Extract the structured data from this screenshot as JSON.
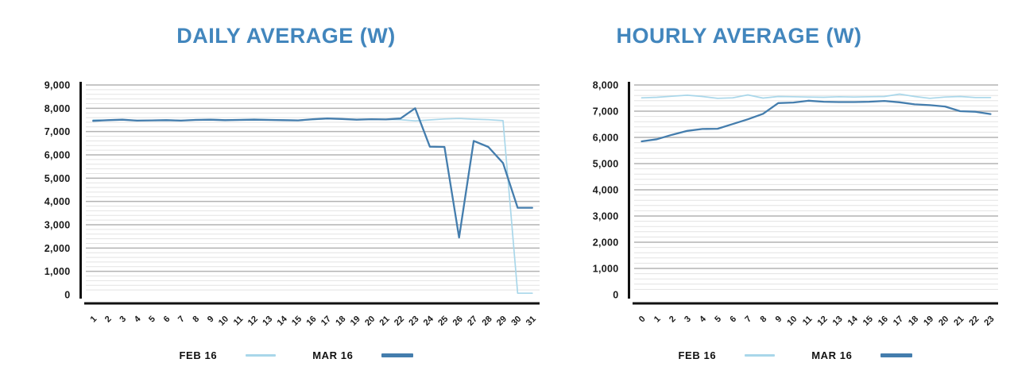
{
  "page": {
    "background_color": "#ffffff",
    "title_color": "#4286bd",
    "axis_color": "#111111",
    "grid_minor_color": "#e3e3e3",
    "grid_major_color": "#b3b3b3",
    "tick_label_color": "#1a1a1a"
  },
  "chart_data": [
    {
      "type": "line",
      "title": "DAILY AVERAGE (W)",
      "xlabel": "",
      "ylabel": "",
      "ylim": [
        0,
        9000
      ],
      "ytick_step": 1000,
      "minor_gridline_step": 200,
      "grid": "horizontal",
      "legend_position": "bottom",
      "ytick_labels": [
        "0",
        "1,000",
        "2,000",
        "3,000",
        "4,000",
        "5,000",
        "6,000",
        "7,000",
        "8,000",
        "9,000"
      ],
      "categories": [
        "1",
        "2",
        "3",
        "4",
        "5",
        "6",
        "7",
        "8",
        "9",
        "10",
        "11",
        "12",
        "13",
        "14",
        "15",
        "16",
        "17",
        "18",
        "19",
        "20",
        "21",
        "22",
        "23",
        "24",
        "25",
        "26",
        "27",
        "28",
        "29",
        "30",
        "31"
      ],
      "series": [
        {
          "name": "FEB 16",
          "color": "#a9d7ea",
          "stroke_width": 1.7,
          "values": [
            7500,
            7490,
            7510,
            7480,
            7490,
            7500,
            7480,
            7510,
            7520,
            7500,
            7510,
            7530,
            7510,
            7500,
            7490,
            7510,
            7550,
            7540,
            7520,
            7530,
            7520,
            7510,
            7460,
            7500,
            7540,
            7560,
            7530,
            7510,
            7470,
            60,
            60
          ]
        },
        {
          "name": "MAR 16",
          "color": "#447dad",
          "stroke_width": 2.3,
          "values": [
            7460,
            7490,
            7510,
            7470,
            7480,
            7490,
            7470,
            7500,
            7510,
            7490,
            7500,
            7510,
            7500,
            7490,
            7480,
            7530,
            7560,
            7540,
            7510,
            7530,
            7520,
            7560,
            8000,
            6350,
            6340,
            2450,
            6600,
            6340,
            5650,
            3730,
            3730
          ]
        }
      ]
    },
    {
      "type": "line",
      "title": "HOURLY AVERAGE (W)",
      "xlabel": "",
      "ylabel": "",
      "ylim": [
        0,
        8000
      ],
      "ytick_step": 1000,
      "minor_gridline_step": 200,
      "grid": "horizontal",
      "legend_position": "bottom",
      "ytick_labels": [
        "0",
        "1,000",
        "2,000",
        "3,000",
        "4,000",
        "5,000",
        "6,000",
        "7,000",
        "8,000"
      ],
      "categories": [
        "0",
        "1",
        "2",
        "3",
        "4",
        "5",
        "6",
        "7",
        "8",
        "9",
        "10",
        "11",
        "12",
        "13",
        "14",
        "15",
        "16",
        "17",
        "18",
        "19",
        "20",
        "21",
        "22",
        "23"
      ],
      "series": [
        {
          "name": "FEB 16",
          "color": "#a9d7ea",
          "stroke_width": 1.7,
          "values": [
            7510,
            7530,
            7570,
            7610,
            7560,
            7490,
            7510,
            7620,
            7500,
            7560,
            7550,
            7540,
            7530,
            7550,
            7540,
            7550,
            7560,
            7650,
            7560,
            7490,
            7540,
            7560,
            7520,
            7520
          ]
        },
        {
          "name": "MAR 16",
          "color": "#447dad",
          "stroke_width": 2.3,
          "values": [
            5850,
            5930,
            6100,
            6250,
            6320,
            6330,
            6510,
            6690,
            6900,
            7310,
            7330,
            7400,
            7360,
            7350,
            7350,
            7360,
            7390,
            7340,
            7260,
            7230,
            7180,
            7000,
            6980,
            6890
          ]
        }
      ]
    }
  ]
}
